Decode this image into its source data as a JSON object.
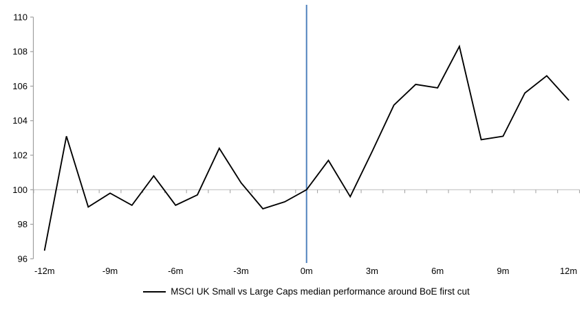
{
  "chart_data": {
    "type": "line",
    "legend": "MSCI UK Small vs Large Caps median performance around BoE first cut",
    "x": [
      -12,
      -11,
      -10,
      -9,
      -8,
      -7,
      -6,
      -5,
      -4,
      -3,
      -2,
      -1,
      0,
      1,
      2,
      3,
      4,
      5,
      6,
      7,
      8,
      9,
      10,
      11,
      12
    ],
    "series": [
      {
        "name": "MSCI UK Small vs Large Caps median performance around BoE first cut",
        "values": [
          96.5,
          103.1,
          99.0,
          99.8,
          99.1,
          100.8,
          99.1,
          99.7,
          102.4,
          100.4,
          98.9,
          99.3,
          100.0,
          101.7,
          99.6,
          102.2,
          104.9,
          106.1,
          105.9,
          108.3,
          102.9,
          103.1,
          105.6,
          106.6,
          105.2
        ]
      }
    ],
    "x_tick_labels": [
      "-12m",
      "-9m",
      "-6m",
      "-3m",
      "0m",
      "3m",
      "6m",
      "9m",
      "12m"
    ],
    "x_tick_positions": [
      -12,
      -9,
      -6,
      -3,
      0,
      3,
      6,
      9,
      12
    ],
    "y_ticks": [
      110,
      108,
      106,
      104,
      102,
      100,
      98,
      96
    ],
    "ylim": [
      96,
      110
    ],
    "xlim": [
      -12,
      12
    ],
    "baseline_value": 100,
    "event_line_x": 0,
    "grid": "off",
    "legend_position": "bottom-center",
    "colors": {
      "series": "#000000",
      "event_line": "#4e81bd",
      "axis": "#9e9e9e",
      "baseline": "#c2c2c2",
      "text": "#000000"
    }
  }
}
